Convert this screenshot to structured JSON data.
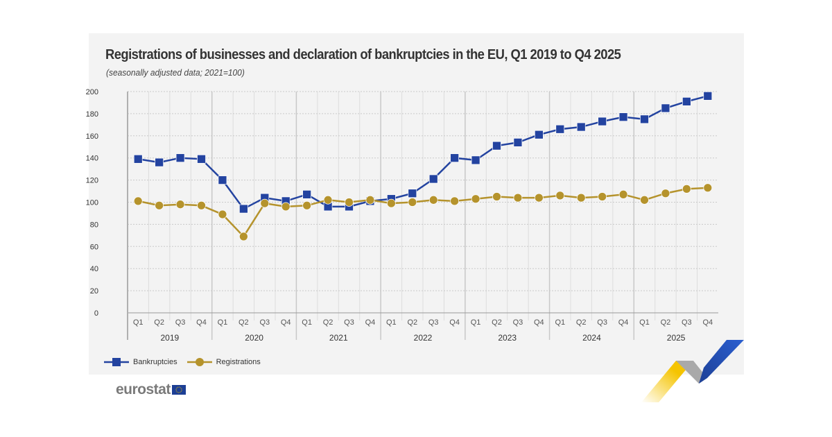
{
  "chart_data": {
    "type": "line",
    "title": "Registrations of businesses and declaration of bankruptcies in the EU, Q1 2019 to Q4 2025",
    "subtitle": "(seasonally adjusted data; 2021=100)",
    "xlabel": "",
    "ylabel": "",
    "ylim": [
      0,
      200
    ],
    "yticks": [
      0,
      20,
      40,
      60,
      80,
      100,
      120,
      140,
      160,
      180,
      200
    ],
    "grid": true,
    "legend_position": "bottom-left",
    "quarters": [
      "Q1",
      "Q2",
      "Q3",
      "Q4"
    ],
    "years": [
      "2019",
      "2020",
      "2021",
      "2022",
      "2023",
      "2024",
      "2025"
    ],
    "series": [
      {
        "name": "Bankruptcies",
        "color": "#2343a0",
        "marker": "square",
        "values": [
          139,
          136,
          140,
          139,
          120,
          94,
          104,
          101,
          107,
          96,
          96,
          101,
          103,
          108,
          121,
          140,
          138,
          151,
          154,
          161,
          166,
          168,
          173,
          177,
          175,
          185,
          191,
          196
        ]
      },
      {
        "name": "Registrations",
        "color": "#b5932c",
        "marker": "circle",
        "values": [
          101,
          97,
          98,
          97,
          89,
          69,
          99,
          96,
          97,
          102,
          100,
          102,
          99,
          100,
          102,
          101,
          103,
          105,
          104,
          104,
          106,
          104,
          105,
          107,
          102,
          108,
          112,
          113
        ]
      }
    ]
  },
  "logo": {
    "text": "eurostat"
  }
}
